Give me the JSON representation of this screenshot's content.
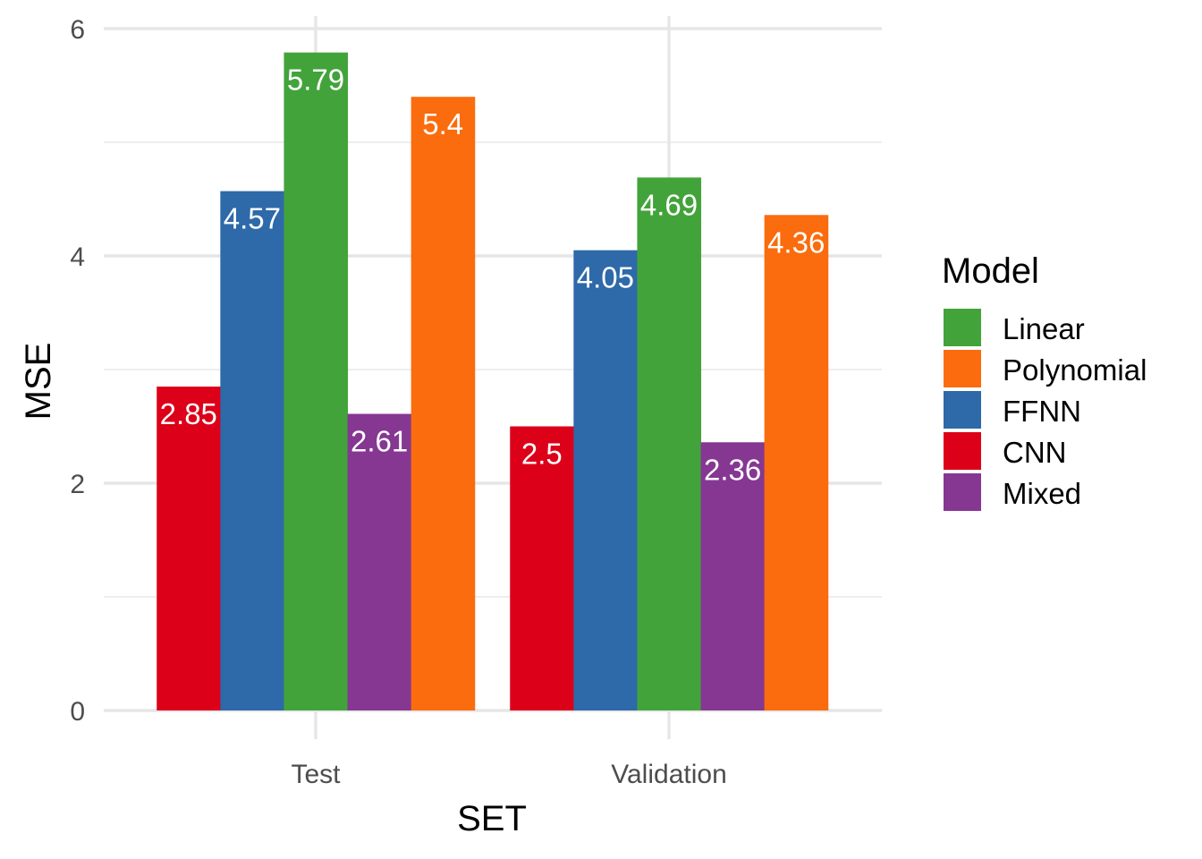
{
  "chart_data": {
    "type": "bar",
    "categories": [
      "Test",
      "Validation"
    ],
    "series": [
      {
        "name": "CNN",
        "values": [
          2.85,
          2.5
        ],
        "labels": [
          "2.85",
          "2.5"
        ]
      },
      {
        "name": "FFNN",
        "values": [
          4.57,
          4.05
        ],
        "labels": [
          "4.57",
          "4.05"
        ]
      },
      {
        "name": "Linear",
        "values": [
          5.79,
          4.69
        ],
        "labels": [
          "5.79",
          "4.69"
        ]
      },
      {
        "name": "Mixed",
        "values": [
          2.61,
          2.36
        ],
        "labels": [
          "2.61",
          "2.36"
        ]
      },
      {
        "name": "Polynomial",
        "values": [
          5.4,
          4.36
        ],
        "labels": [
          "5.4",
          "4.36"
        ]
      }
    ],
    "colors": {
      "CNN": "#dc0019",
      "FFNN": "#2e69a9",
      "Linear": "#43a33b",
      "Mixed": "#853792",
      "Polynomial": "#fa6c0d"
    },
    "title": "",
    "xlabel": "SET",
    "ylabel": "MSE",
    "ylim": [
      0,
      6
    ],
    "yticks": [
      0,
      2,
      4,
      6
    ],
    "grid": true,
    "legend": {
      "title": "Model",
      "position": "right",
      "order": [
        "Linear",
        "Polynomial",
        "FFNN",
        "CNN",
        "Mixed"
      ]
    }
  }
}
